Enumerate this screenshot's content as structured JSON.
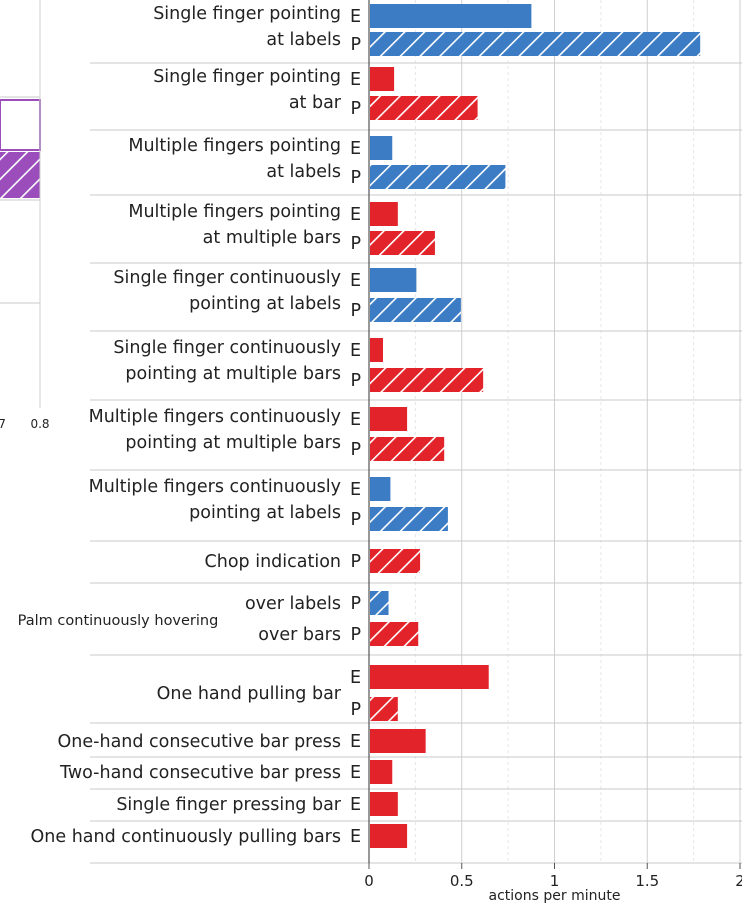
{
  "chart_data": [
    {
      "type": "bar",
      "orientation": "horizontal",
      "note": "partially visible chart cropped at left edge",
      "series": [
        {
          "name": "purple",
          "color": "#9b4dbb"
        }
      ],
      "tick_labels": [
        "7",
        "0.8"
      ]
    },
    {
      "type": "bar",
      "orientation": "horizontal",
      "xlabel": "actions per minute",
      "xlim": [
        0,
        2
      ],
      "xticks": [
        "0",
        "0.5",
        "1",
        "1.5",
        "2"
      ],
      "colors": {
        "blue": "#3b7cc4",
        "red": "#e3232a"
      },
      "rows": [
        {
          "group": "Single finger pointing\nat labels",
          "code": "E",
          "value": 0.87,
          "color": "blue",
          "hatched": false
        },
        {
          "group": "Single finger pointing\nat labels",
          "code": "P",
          "value": 1.78,
          "color": "blue",
          "hatched": true
        },
        {
          "group": "Single finger pointing\nat bar",
          "code": "E",
          "value": 0.13,
          "color": "red",
          "hatched": false
        },
        {
          "group": "Single finger pointing\nat bar",
          "code": "P",
          "value": 0.58,
          "color": "red",
          "hatched": true
        },
        {
          "group": "Multiple fingers pointing\nat labels",
          "code": "E",
          "value": 0.12,
          "color": "blue",
          "hatched": false
        },
        {
          "group": "Multiple fingers pointing\nat labels",
          "code": "P",
          "value": 0.73,
          "color": "blue",
          "hatched": true
        },
        {
          "group": "Multiple fingers pointing\nat multiple bars",
          "code": "E",
          "value": 0.15,
          "color": "red",
          "hatched": false
        },
        {
          "group": "Multiple fingers pointing\nat multiple bars",
          "code": "P",
          "value": 0.35,
          "color": "red",
          "hatched": true
        },
        {
          "group": "Single finger continuously\npointing at labels",
          "code": "E",
          "value": 0.25,
          "color": "blue",
          "hatched": false
        },
        {
          "group": "Single finger continuously\npointing at labels",
          "code": "P",
          "value": 0.49,
          "color": "blue",
          "hatched": true
        },
        {
          "group": "Single finger continuously\npointing at multiple bars",
          "code": "E",
          "value": 0.07,
          "color": "red",
          "hatched": false
        },
        {
          "group": "Single finger continuously\npointing at multiple bars",
          "code": "P",
          "value": 0.61,
          "color": "red",
          "hatched": true
        },
        {
          "group": "Multiple fingers continuously\npointing at multiple bars",
          "code": "E",
          "value": 0.2,
          "color": "red",
          "hatched": false
        },
        {
          "group": "Multiple fingers continuously\npointing at multiple bars",
          "code": "P",
          "value": 0.4,
          "color": "red",
          "hatched": true
        },
        {
          "group": "Multiple fingers continuously\npointing at labels",
          "code": "E",
          "value": 0.11,
          "color": "blue",
          "hatched": false
        },
        {
          "group": "Multiple fingers continuously\npointing at labels",
          "code": "P",
          "value": 0.42,
          "color": "blue",
          "hatched": true
        },
        {
          "group": "Chop indication",
          "code": "P",
          "value": 0.27,
          "color": "red",
          "hatched": true
        },
        {
          "group": "Palm continuously hovering",
          "sub": "over labels",
          "code": "P",
          "value": 0.1,
          "color": "blue",
          "hatched": true
        },
        {
          "group": "Palm continuously hovering",
          "sub": "over bars",
          "code": "P",
          "value": 0.26,
          "color": "red",
          "hatched": true
        },
        {
          "group": "One hand pulling bar",
          "code": "E",
          "value": 0.64,
          "color": "red",
          "hatched": false
        },
        {
          "group": "One hand pulling bar",
          "code": "P",
          "value": 0.15,
          "color": "red",
          "hatched": true
        },
        {
          "group": "One-hand consecutive bar press",
          "code": "E",
          "value": 0.3,
          "color": "red",
          "hatched": false
        },
        {
          "group": "Two-hand consecutive bar press",
          "code": "E",
          "value": 0.12,
          "color": "red",
          "hatched": false
        },
        {
          "group": "Single finger pressing bar",
          "code": "E",
          "value": 0.15,
          "color": "red",
          "hatched": false
        },
        {
          "group": "One hand continuously pulling bars",
          "code": "E",
          "value": 0.2,
          "color": "red",
          "hatched": false
        }
      ]
    }
  ]
}
